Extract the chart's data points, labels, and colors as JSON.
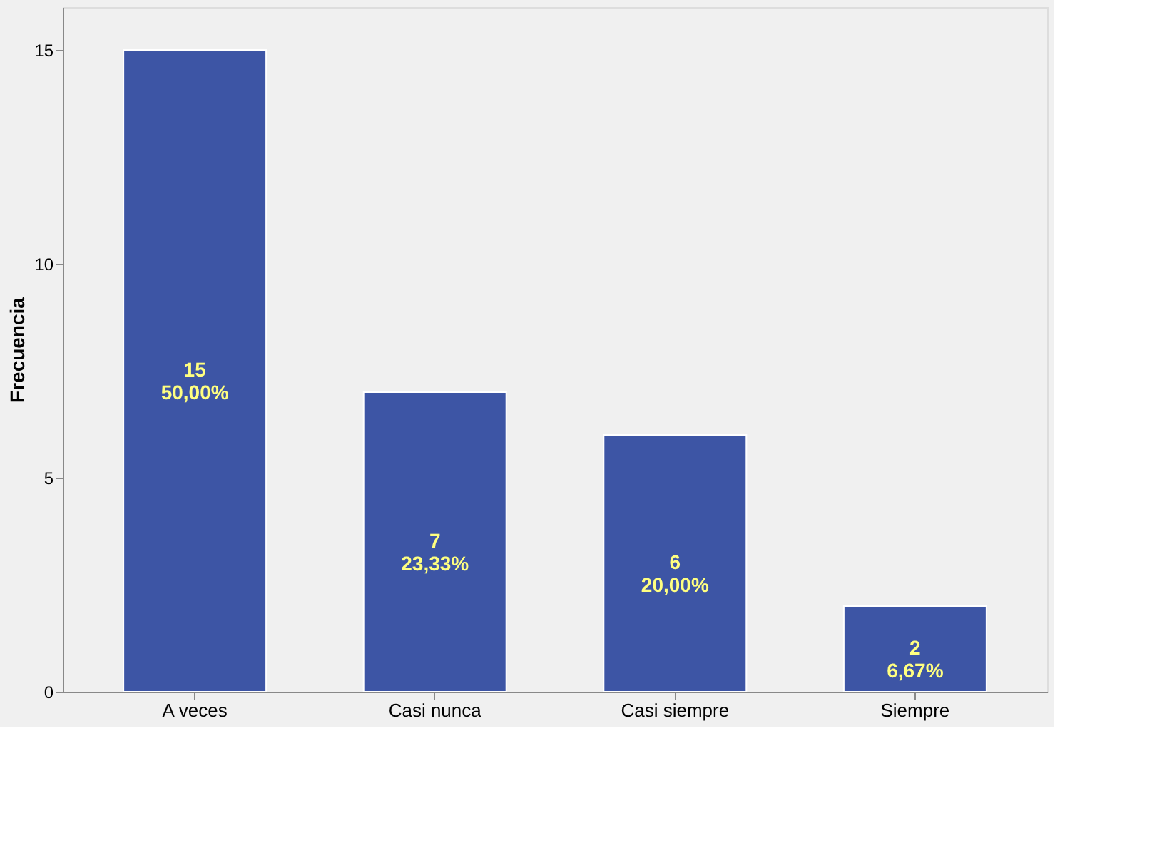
{
  "chart_data": {
    "type": "bar",
    "ylabel": "Frecuencia",
    "categories": [
      "A veces",
      "Casi nunca",
      "Casi siempre",
      "Siempre"
    ],
    "values": [
      15,
      7,
      6,
      2
    ],
    "color": "#3d55a5",
    "value_labels": [
      "15\n50,00%",
      "7\n23,33%",
      "6\n20,00%",
      "2\n6,67%"
    ],
    "ylim": [
      0,
      16
    ],
    "yticks": [
      0,
      5,
      10,
      15
    ],
    "grid": false
  }
}
